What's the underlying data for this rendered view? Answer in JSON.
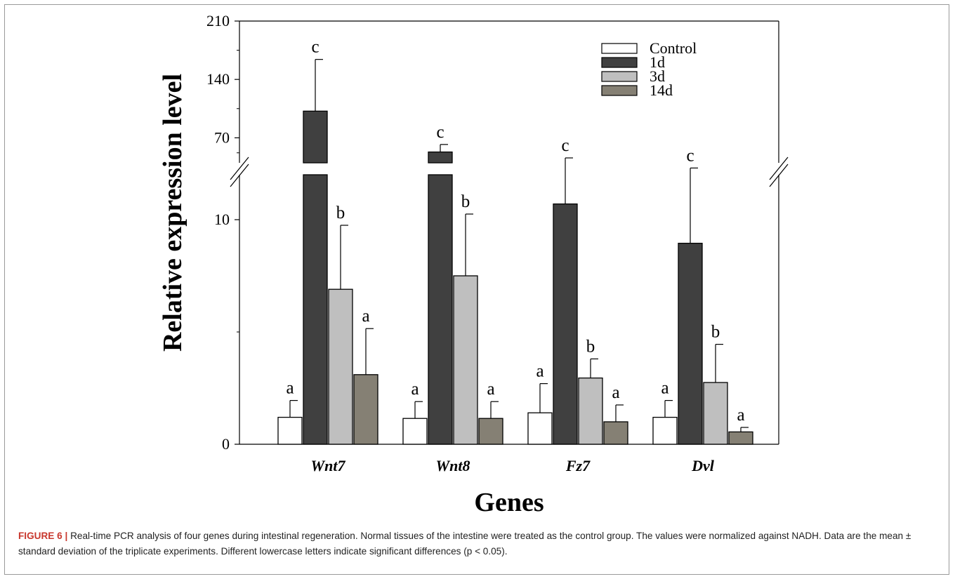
{
  "chart_data": {
    "type": "bar",
    "ylabel": "Relative expression level",
    "xlabel": "Genes",
    "categories": [
      "Wnt7",
      "Wnt8",
      "Fz7",
      "Dvl"
    ],
    "y_axis": {
      "broken": true,
      "lower_range": [
        0,
        12
      ],
      "upper_range": [
        40,
        210
      ],
      "tick_labels": [
        "0",
        "10",
        "70",
        "140",
        "210"
      ]
    },
    "series": [
      {
        "name": "Control",
        "color": "#ffffff",
        "values": [
          1.2,
          1.15,
          1.4,
          1.2
        ],
        "errors": [
          0.75,
          0.75,
          1.3,
          0.75
        ],
        "letters": [
          "a",
          "a",
          "a",
          "a"
        ]
      },
      {
        "name": "1d",
        "color": "#404040",
        "values": [
          102,
          53,
          10.7,
          8.95
        ],
        "errors": [
          62,
          9,
          2.05,
          3.35
        ],
        "letters": [
          "c",
          "c",
          "c",
          "c"
        ]
      },
      {
        "name": "3d",
        "color": "#bfbfbf",
        "values": [
          6.9,
          7.5,
          2.95,
          2.75
        ],
        "errors": [
          2.85,
          2.75,
          0.85,
          1.7
        ],
        "letters": [
          "b",
          "b",
          "b",
          "b"
        ]
      },
      {
        "name": "14d",
        "color": "#858074",
        "values": [
          3.1,
          1.15,
          1.0,
          0.55
        ],
        "errors": [
          2.05,
          0.75,
          0.75,
          0.2
        ],
        "letters": [
          "a",
          "a",
          "a",
          "a"
        ]
      }
    ],
    "legend_position": "top-right",
    "grid": false
  },
  "caption": {
    "label": "FIGURE 6 |",
    "text": "Real-time PCR analysis of four genes during intestinal regeneration. Normal tissues of the intestine were treated as the control group. The values were normalized against NADH. Data are the mean ± standard deviation of the triplicate experiments. Different lowercase letters indicate significant differences (p < 0.05)."
  }
}
